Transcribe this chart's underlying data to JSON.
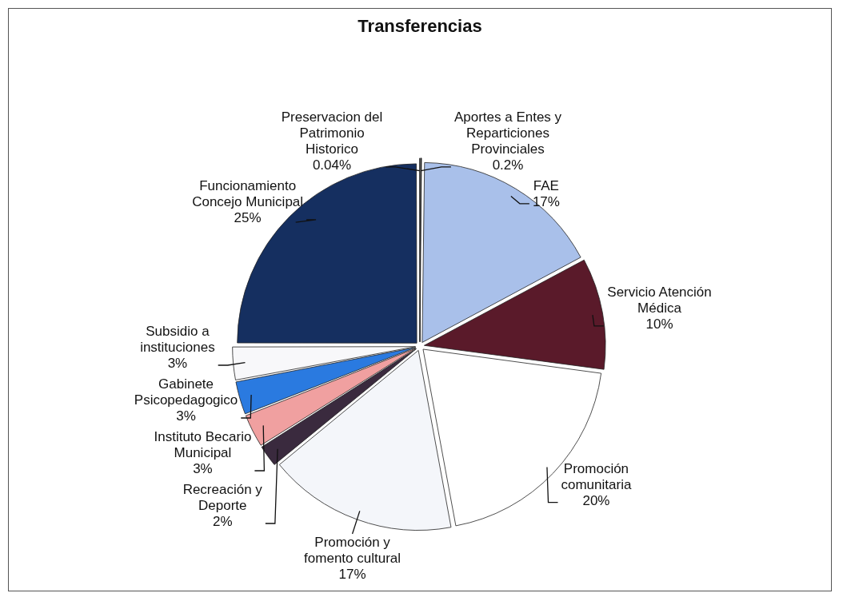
{
  "chart_data": {
    "type": "pie",
    "title": "Transferencias",
    "categories": [
      "Aportes a Entes y Reparticiones Provinciales",
      "FAE",
      "Servicio Atención Médica",
      "Promoción comunitaria",
      "Promoción y fomento cultural",
      "Recreación y Deporte",
      "Instituto Becario Municipal",
      "Gabinete Psicopedagogico",
      "Subsidio a instituciones",
      "Funcionamiento Concejo Municipal",
      "Preservacion del Patrimonio Historico"
    ],
    "values": [
      0.2,
      17,
      10,
      20,
      17,
      2,
      3,
      3,
      3,
      25,
      0.04
    ],
    "value_labels": [
      "0.2%",
      "17%",
      "10%",
      "20%",
      "17%",
      "2%",
      "3%",
      "3%",
      "3%",
      "25%",
      "0.04%"
    ],
    "colors": [
      "#1a1a1a",
      "#a9c0ea",
      "#5a1a2a",
      "#ffffff",
      "#f4f6fa",
      "#3a2a3e",
      "#f0a0a0",
      "#2a7ae0",
      "#f8f8fa",
      "#152f60",
      "#222222"
    ],
    "legend": false
  }
}
